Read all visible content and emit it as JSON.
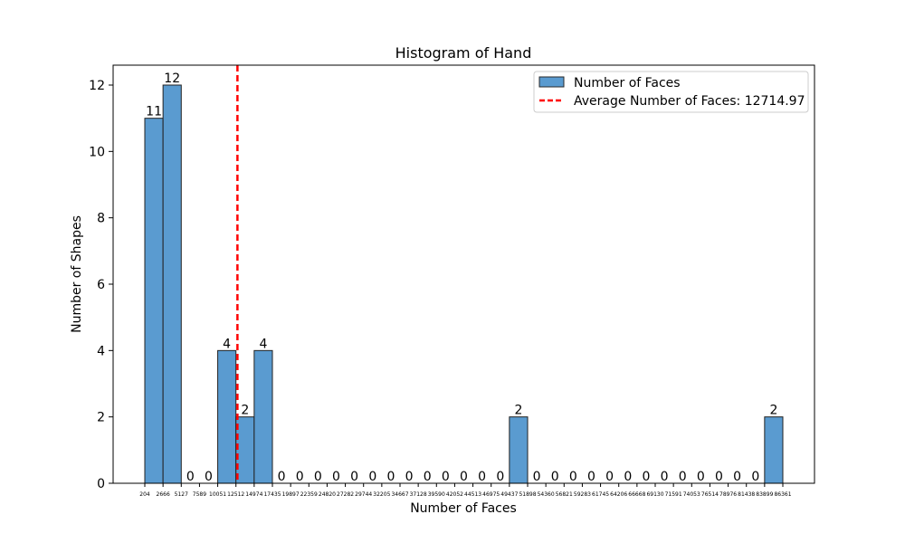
{
  "chart_data": {
    "type": "bar",
    "title": "Histogram of Hand",
    "xlabel": "Number of Faces",
    "ylabel": "Number of Shapes",
    "ylim": [
      0,
      12.6
    ],
    "y_ticks": [
      0,
      2,
      4,
      6,
      8,
      10,
      12
    ],
    "bin_edges": [
      204,
      2666,
      5127,
      7589,
      10051,
      12512,
      14974,
      17435,
      19897,
      22359,
      24820,
      27282,
      29744,
      32205,
      34667,
      37128,
      39590,
      42052,
      44513,
      46975,
      49437,
      51898,
      54360,
      56821,
      59283,
      61745,
      64206,
      66668,
      69130,
      71591,
      74053,
      76514,
      78976,
      81438,
      83899,
      86361
    ],
    "values": [
      11,
      12,
      0,
      0,
      4,
      2,
      4,
      0,
      0,
      0,
      0,
      0,
      0,
      0,
      0,
      0,
      0,
      0,
      0,
      0,
      2,
      0,
      0,
      0,
      0,
      0,
      0,
      0,
      0,
      0,
      0,
      0,
      0,
      0,
      2
    ],
    "series": [
      {
        "name": "Number of Faces",
        "color": "#5a9bd0"
      }
    ],
    "average_line": {
      "label": "Average Number of Faces: 12714.97",
      "value": 12714.97,
      "color": "#ff0000"
    },
    "legend_position": "top-right",
    "grid": false
  }
}
